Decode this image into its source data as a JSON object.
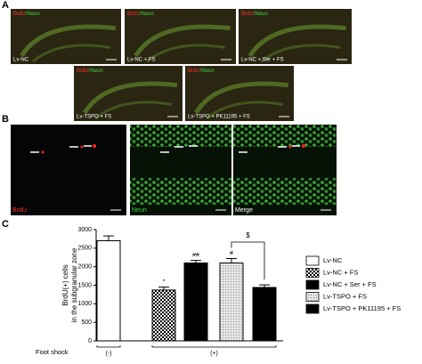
{
  "panels": {
    "A": {
      "label": "A",
      "stain": [
        "BrdU",
        "/Neun"
      ],
      "images": [
        "Lv-NC",
        "Lv-NC + FS",
        "Lv-NC + Ser + FS",
        "Lv-TSPO + FS",
        "Lv-TSPO + PK11195 + FS"
      ]
    },
    "B": {
      "label": "B",
      "images": [
        "BrdU",
        "Neun",
        "Merge"
      ]
    },
    "C": {
      "label": "C"
    }
  },
  "chart_data": {
    "type": "bar",
    "ylabel": [
      "BrdU(+) cells",
      "in the subgranular zone"
    ],
    "categories": [
      "Lv-NC",
      "Lv-NC + FS",
      "Lv-NC + Ser + FS",
      "Lv-TSPO + FS",
      "Lv-TSPO + PK11195 + FS"
    ],
    "values": [
      2700,
      1370,
      2100,
      2100,
      1440
    ],
    "errors": [
      130,
      80,
      70,
      120,
      70
    ],
    "colors": [
      "white",
      "checker",
      "black",
      "dots",
      "black"
    ],
    "ylim": [
      0,
      3000
    ],
    "yticks": [
      0,
      500,
      1000,
      1500,
      2000,
      2500,
      3000
    ],
    "annotations": [
      "*",
      "##",
      "#",
      "$"
    ],
    "xlabel": "Foot shock",
    "groups": [
      "(-)",
      "(+)"
    ],
    "legend": "right"
  }
}
